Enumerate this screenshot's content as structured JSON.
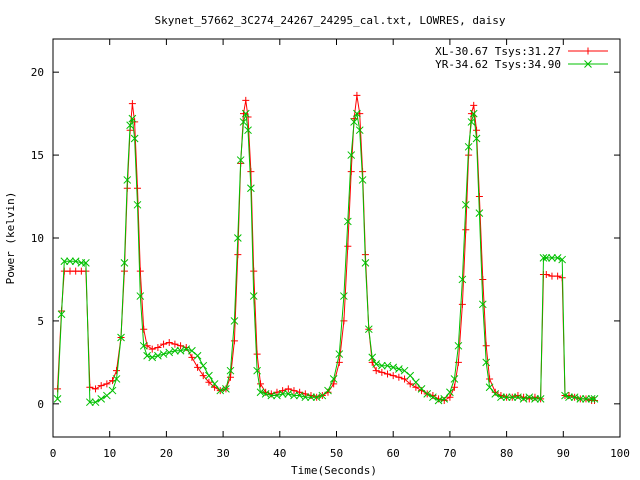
{
  "chart_data": {
    "type": "line",
    "title": "Skynet_57662_3C274_24267_24295_cal.txt, LOWRES, daisy",
    "xlabel": "Time(Seconds)",
    "ylabel": "Power (kelvin)",
    "xlim": [
      0,
      100
    ],
    "ylim": [
      -2,
      22
    ],
    "xticks": [
      0,
      10,
      20,
      30,
      40,
      50,
      60,
      70,
      80,
      90,
      100
    ],
    "yticks": [
      0,
      5,
      10,
      15,
      20
    ],
    "grid": false,
    "legend": "top-right",
    "series": [
      {
        "name": "XL-30.67 Tsys:31.27",
        "color": "#ff0000",
        "marker": "plus",
        "points": [
          [
            0.8,
            0.9
          ],
          [
            1.5,
            5.6
          ],
          [
            2,
            8.0
          ],
          [
            3,
            8.0
          ],
          [
            4,
            8.0
          ],
          [
            5,
            8.0
          ],
          [
            5.8,
            8.0
          ],
          [
            6.5,
            1.0
          ],
          [
            7.5,
            0.9
          ],
          [
            8.5,
            1.1
          ],
          [
            9.5,
            1.2
          ],
          [
            10.5,
            1.4
          ],
          [
            11.2,
            2.0
          ],
          [
            12,
            4.0
          ],
          [
            12.6,
            8.0
          ],
          [
            13.1,
            13.0
          ],
          [
            13.6,
            16.5
          ],
          [
            14,
            18.1
          ],
          [
            14.4,
            17.0
          ],
          [
            14.9,
            13.0
          ],
          [
            15.4,
            8.0
          ],
          [
            16,
            4.5
          ],
          [
            16.6,
            3.5
          ],
          [
            17.5,
            3.3
          ],
          [
            18.5,
            3.4
          ],
          [
            19.5,
            3.6
          ],
          [
            20.5,
            3.7
          ],
          [
            21.5,
            3.6
          ],
          [
            22.5,
            3.5
          ],
          [
            23.5,
            3.4
          ],
          [
            24.5,
            2.8
          ],
          [
            25.5,
            2.2
          ],
          [
            26.5,
            1.7
          ],
          [
            27.5,
            1.3
          ],
          [
            28.5,
            1.0
          ],
          [
            29.5,
            0.8
          ],
          [
            30.5,
            0.9
          ],
          [
            31.3,
            1.6
          ],
          [
            32,
            3.8
          ],
          [
            32.6,
            9.0
          ],
          [
            33.1,
            14.5
          ],
          [
            33.6,
            17.5
          ],
          [
            34,
            18.3
          ],
          [
            34.4,
            17.3
          ],
          [
            34.9,
            14.0
          ],
          [
            35.4,
            8.0
          ],
          [
            36,
            3.0
          ],
          [
            36.6,
            1.2
          ],
          [
            37.5,
            0.7
          ],
          [
            38.5,
            0.6
          ],
          [
            39.5,
            0.7
          ],
          [
            40.5,
            0.8
          ],
          [
            41.5,
            0.9
          ],
          [
            42.5,
            0.8
          ],
          [
            43.5,
            0.7
          ],
          [
            44.5,
            0.6
          ],
          [
            45.5,
            0.5
          ],
          [
            46.5,
            0.4
          ],
          [
            47.5,
            0.5
          ],
          [
            48.5,
            0.7
          ],
          [
            49.5,
            1.2
          ],
          [
            50.5,
            2.5
          ],
          [
            51.3,
            5.0
          ],
          [
            52,
            9.5
          ],
          [
            52.6,
            14.0
          ],
          [
            53.1,
            17.2
          ],
          [
            53.6,
            18.6
          ],
          [
            54.1,
            17.5
          ],
          [
            54.6,
            14.0
          ],
          [
            55.1,
            9.0
          ],
          [
            55.7,
            4.5
          ],
          [
            56.3,
            2.5
          ],
          [
            57,
            2.0
          ],
          [
            58,
            1.9
          ],
          [
            59,
            1.8
          ],
          [
            60,
            1.7
          ],
          [
            61,
            1.6
          ],
          [
            62,
            1.5
          ],
          [
            63,
            1.2
          ],
          [
            64,
            1.0
          ],
          [
            65,
            0.8
          ],
          [
            66,
            0.6
          ],
          [
            67,
            0.5
          ],
          [
            68,
            0.3
          ],
          [
            69,
            0.2
          ],
          [
            70,
            0.4
          ],
          [
            70.8,
            1.0
          ],
          [
            71.5,
            2.5
          ],
          [
            72.2,
            6.0
          ],
          [
            72.8,
            10.5
          ],
          [
            73.3,
            15.0
          ],
          [
            73.8,
            17.5
          ],
          [
            74.2,
            18.0
          ],
          [
            74.7,
            16.5
          ],
          [
            75.2,
            12.5
          ],
          [
            75.8,
            7.5
          ],
          [
            76.4,
            3.5
          ],
          [
            77,
            1.5
          ],
          [
            78,
            0.7
          ],
          [
            79,
            0.5
          ],
          [
            80,
            0.4
          ],
          [
            81,
            0.4
          ],
          [
            82,
            0.5
          ],
          [
            83,
            0.4
          ],
          [
            84,
            0.3
          ],
          [
            85,
            0.4
          ],
          [
            86,
            0.3
          ],
          [
            86.5,
            7.8
          ],
          [
            87,
            7.8
          ],
          [
            88,
            7.7
          ],
          [
            89,
            7.7
          ],
          [
            89.8,
            7.6
          ],
          [
            90.3,
            0.5
          ],
          [
            91,
            0.5
          ],
          [
            92,
            0.4
          ],
          [
            93,
            0.3
          ],
          [
            94,
            0.3
          ],
          [
            95,
            0.2
          ],
          [
            95.5,
            0.2
          ]
        ]
      },
      {
        "name": "YR-34.62 Tsys:34.90",
        "color": "#00c000",
        "marker": "cross",
        "points": [
          [
            0.8,
            0.3
          ],
          [
            1.5,
            5.4
          ],
          [
            2,
            8.6
          ],
          [
            3,
            8.6
          ],
          [
            4,
            8.6
          ],
          [
            5,
            8.5
          ],
          [
            5.8,
            8.5
          ],
          [
            6.5,
            0.1
          ],
          [
            7.5,
            0.1
          ],
          [
            8.5,
            0.3
          ],
          [
            9.5,
            0.5
          ],
          [
            10.5,
            0.8
          ],
          [
            11.2,
            1.5
          ],
          [
            12,
            4.0
          ],
          [
            12.6,
            8.5
          ],
          [
            13.1,
            13.5
          ],
          [
            13.6,
            16.8
          ],
          [
            14,
            17.2
          ],
          [
            14.4,
            16.0
          ],
          [
            14.9,
            12.0
          ],
          [
            15.4,
            6.5
          ],
          [
            16,
            3.5
          ],
          [
            16.6,
            2.9
          ],
          [
            17.5,
            2.8
          ],
          [
            18.5,
            2.9
          ],
          [
            19.5,
            3.0
          ],
          [
            20.5,
            3.1
          ],
          [
            21.5,
            3.2
          ],
          [
            22.5,
            3.2
          ],
          [
            23.5,
            3.3
          ],
          [
            24.5,
            3.2
          ],
          [
            25.5,
            2.9
          ],
          [
            26.5,
            2.3
          ],
          [
            27.5,
            1.7
          ],
          [
            28.5,
            1.2
          ],
          [
            29.5,
            0.8
          ],
          [
            30.5,
            0.9
          ],
          [
            31.3,
            2.0
          ],
          [
            32,
            5.0
          ],
          [
            32.6,
            10.0
          ],
          [
            33.1,
            14.7
          ],
          [
            33.6,
            17.0
          ],
          [
            34,
            17.5
          ],
          [
            34.4,
            16.5
          ],
          [
            34.9,
            13.0
          ],
          [
            35.4,
            6.5
          ],
          [
            36,
            2.0
          ],
          [
            36.6,
            0.7
          ],
          [
            37.5,
            0.6
          ],
          [
            38.5,
            0.5
          ],
          [
            39.5,
            0.5
          ],
          [
            40.5,
            0.6
          ],
          [
            41.5,
            0.6
          ],
          [
            42.5,
            0.5
          ],
          [
            43.5,
            0.5
          ],
          [
            44.5,
            0.4
          ],
          [
            45.5,
            0.4
          ],
          [
            46.5,
            0.4
          ],
          [
            47.5,
            0.5
          ],
          [
            48.5,
            0.8
          ],
          [
            49.5,
            1.5
          ],
          [
            50.5,
            3.0
          ],
          [
            51.3,
            6.5
          ],
          [
            52,
            11.0
          ],
          [
            52.6,
            15.0
          ],
          [
            53.1,
            17.0
          ],
          [
            53.6,
            17.5
          ],
          [
            54.1,
            16.5
          ],
          [
            54.6,
            13.5
          ],
          [
            55.1,
            8.5
          ],
          [
            55.7,
            4.5
          ],
          [
            56.3,
            2.8
          ],
          [
            57,
            2.4
          ],
          [
            58,
            2.3
          ],
          [
            59,
            2.3
          ],
          [
            60,
            2.2
          ],
          [
            61,
            2.1
          ],
          [
            62,
            2.0
          ],
          [
            63,
            1.7
          ],
          [
            64,
            1.3
          ],
          [
            65,
            0.9
          ],
          [
            66,
            0.6
          ],
          [
            67,
            0.4
          ],
          [
            68,
            0.2
          ],
          [
            69,
            0.3
          ],
          [
            70,
            0.7
          ],
          [
            70.8,
            1.5
          ],
          [
            71.5,
            3.5
          ],
          [
            72.2,
            7.5
          ],
          [
            72.8,
            12.0
          ],
          [
            73.3,
            15.5
          ],
          [
            73.8,
            17.0
          ],
          [
            74.2,
            17.5
          ],
          [
            74.7,
            16.0
          ],
          [
            75.2,
            11.5
          ],
          [
            75.8,
            6.0
          ],
          [
            76.4,
            2.5
          ],
          [
            77,
            1.0
          ],
          [
            78,
            0.6
          ],
          [
            79,
            0.4
          ],
          [
            80,
            0.4
          ],
          [
            81,
            0.4
          ],
          [
            82,
            0.4
          ],
          [
            83,
            0.3
          ],
          [
            84,
            0.4
          ],
          [
            85,
            0.3
          ],
          [
            86,
            0.3
          ],
          [
            86.5,
            8.8
          ],
          [
            87,
            8.8
          ],
          [
            88,
            8.8
          ],
          [
            89,
            8.8
          ],
          [
            89.8,
            8.7
          ],
          [
            90.3,
            0.5
          ],
          [
            91,
            0.4
          ],
          [
            92,
            0.4
          ],
          [
            93,
            0.3
          ],
          [
            94,
            0.3
          ],
          [
            95,
            0.3
          ],
          [
            95.5,
            0.3
          ]
        ]
      }
    ]
  }
}
